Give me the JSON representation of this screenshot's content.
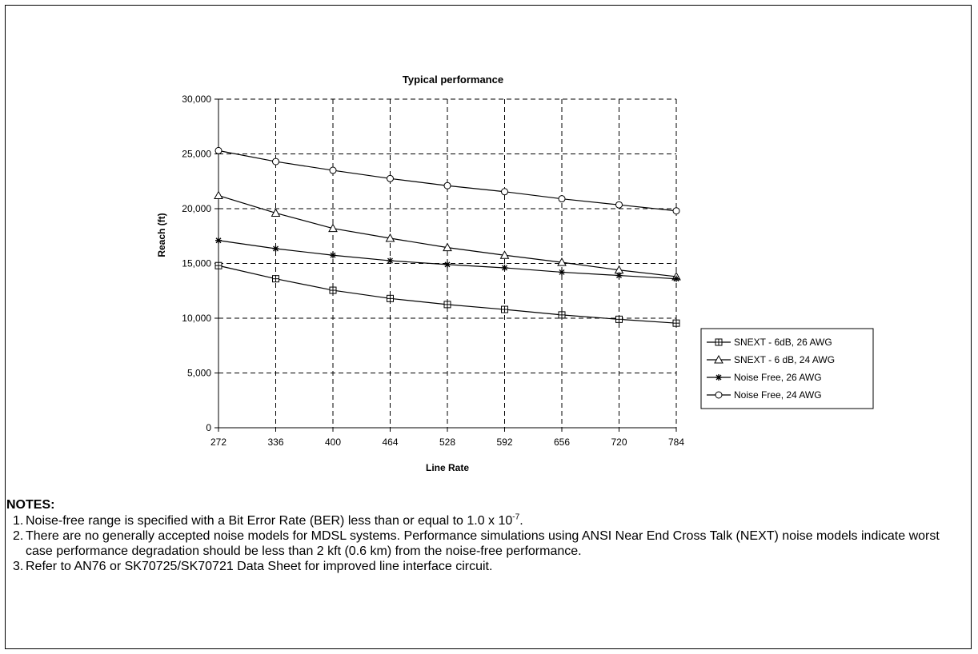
{
  "chart_data": {
    "type": "line",
    "title": "Typical performance",
    "xlabel": "Line Rate",
    "ylabel": "Reach (ft)",
    "categories": [
      "272",
      "336",
      "400",
      "464",
      "528",
      "592",
      "656",
      "720",
      "784"
    ],
    "x": [
      272,
      336,
      400,
      464,
      528,
      592,
      656,
      720,
      784
    ],
    "ylim": [
      0,
      30000
    ],
    "yticks": [
      0,
      5000,
      10000,
      15000,
      20000,
      25000,
      30000
    ],
    "ytick_labels": [
      "0",
      "5,000",
      "10,000",
      "15,000",
      "20,000",
      "25,000",
      "30,000"
    ],
    "grid": "dashed",
    "legend_position": "right",
    "series": [
      {
        "name": "SNEXT - 6dB, 26 AWG",
        "marker": "square",
        "values": [
          14800,
          13600,
          12550,
          11800,
          11250,
          10800,
          10300,
          9900,
          9550
        ]
      },
      {
        "name": "SNEXT - 6 dB, 24 AWG",
        "marker": "triangle",
        "values": [
          21200,
          19600,
          18200,
          17300,
          16450,
          15750,
          15100,
          14400,
          13800
        ]
      },
      {
        "name": "Noise Free, 26 AWG",
        "marker": "star",
        "values": [
          17100,
          16350,
          15750,
          15250,
          14900,
          14600,
          14200,
          13900,
          13600
        ]
      },
      {
        "name": "Noise Free, 24 AWG",
        "marker": "circle",
        "values": [
          25300,
          24300,
          23500,
          22750,
          22100,
          21550,
          20900,
          20350,
          19800
        ]
      }
    ]
  },
  "notes": {
    "heading": "NOTES:",
    "items": [
      {
        "num": "1.",
        "text": "Noise-free range is specified with a Bit Error Rate (BER) less than or equal to 1.0 x 10",
        "sup": "-7",
        "suffix": "."
      },
      {
        "num": "2.",
        "text": "There are no generally accepted noise models for MDSL systems.  Performance simulations using ANSI Near End Cross Talk (NEXT) noise models indicate worst case performance degradation should be less than 2 kft (0.6 km) from the noise-free performance."
      },
      {
        "num": "3.",
        "text": "Refer to AN76 or SK70725/SK70721 Data Sheet for improved line interface circuit."
      }
    ]
  }
}
